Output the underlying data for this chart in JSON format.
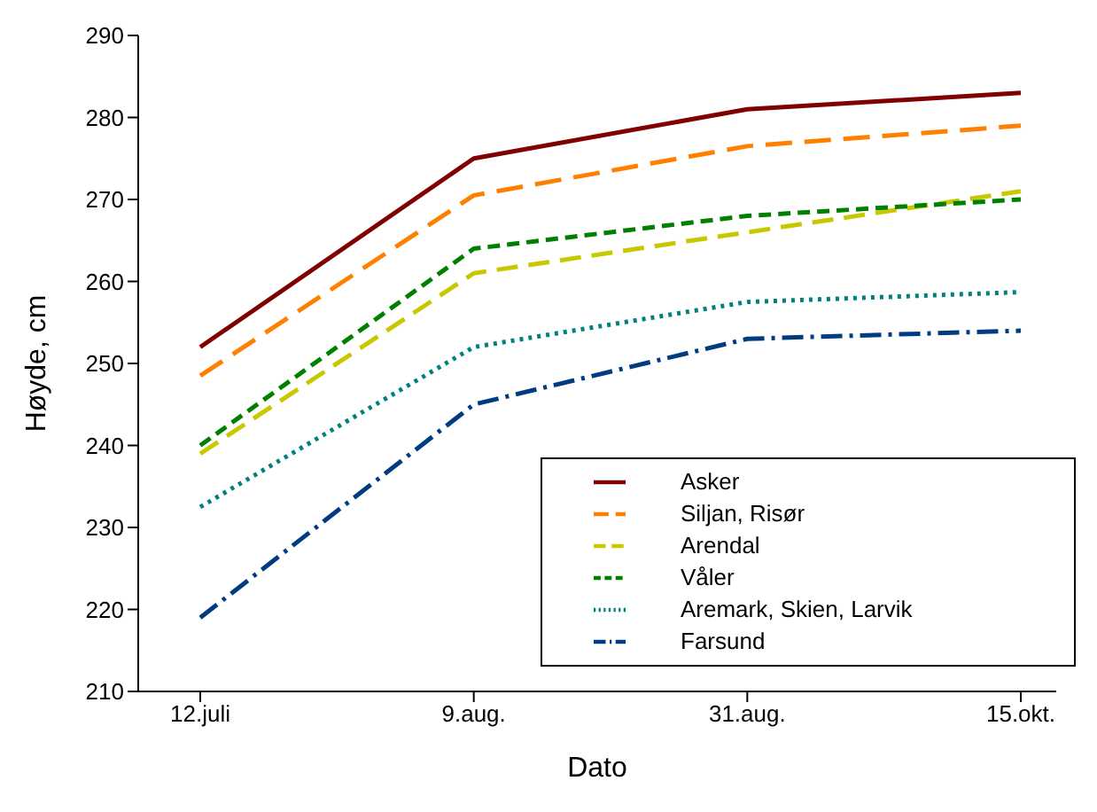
{
  "chart_data": {
    "type": "line",
    "xlabel": "Dato",
    "ylabel": "Høyde, cm",
    "categories": [
      "12.juli",
      "9.aug.",
      "31.aug.",
      "15.okt."
    ],
    "ylim": [
      210,
      290
    ],
    "yticks": [
      210,
      220,
      230,
      240,
      250,
      260,
      270,
      280,
      290
    ],
    "grid": false,
    "legend": "bottom right",
    "marker": "none",
    "series": [
      {
        "name": "Asker",
        "color": "#800000",
        "line_style": "solid",
        "values": [
          252,
          275,
          281,
          283
        ]
      },
      {
        "name": "Siljan, Risør",
        "color": "#ff8000",
        "line_style": "longdash",
        "values": [
          248.5,
          270.5,
          276.5,
          279
        ]
      },
      {
        "name": "Arendal",
        "color": "#c8c800",
        "line_style": "dashed",
        "values": [
          239,
          261,
          266,
          271
        ]
      },
      {
        "name": "Våler",
        "color": "#008000",
        "line_style": "shortdash",
        "values": [
          240,
          264,
          268,
          270
        ]
      },
      {
        "name": "Aremark, Skien, Larvik",
        "color": "#008080",
        "line_style": "dotted",
        "values": [
          232.5,
          252,
          257.5,
          258.7
        ]
      },
      {
        "name": "Farsund",
        "color": "#003c80",
        "line_style": "dashdot",
        "values": [
          219,
          245,
          253,
          254
        ]
      }
    ]
  }
}
